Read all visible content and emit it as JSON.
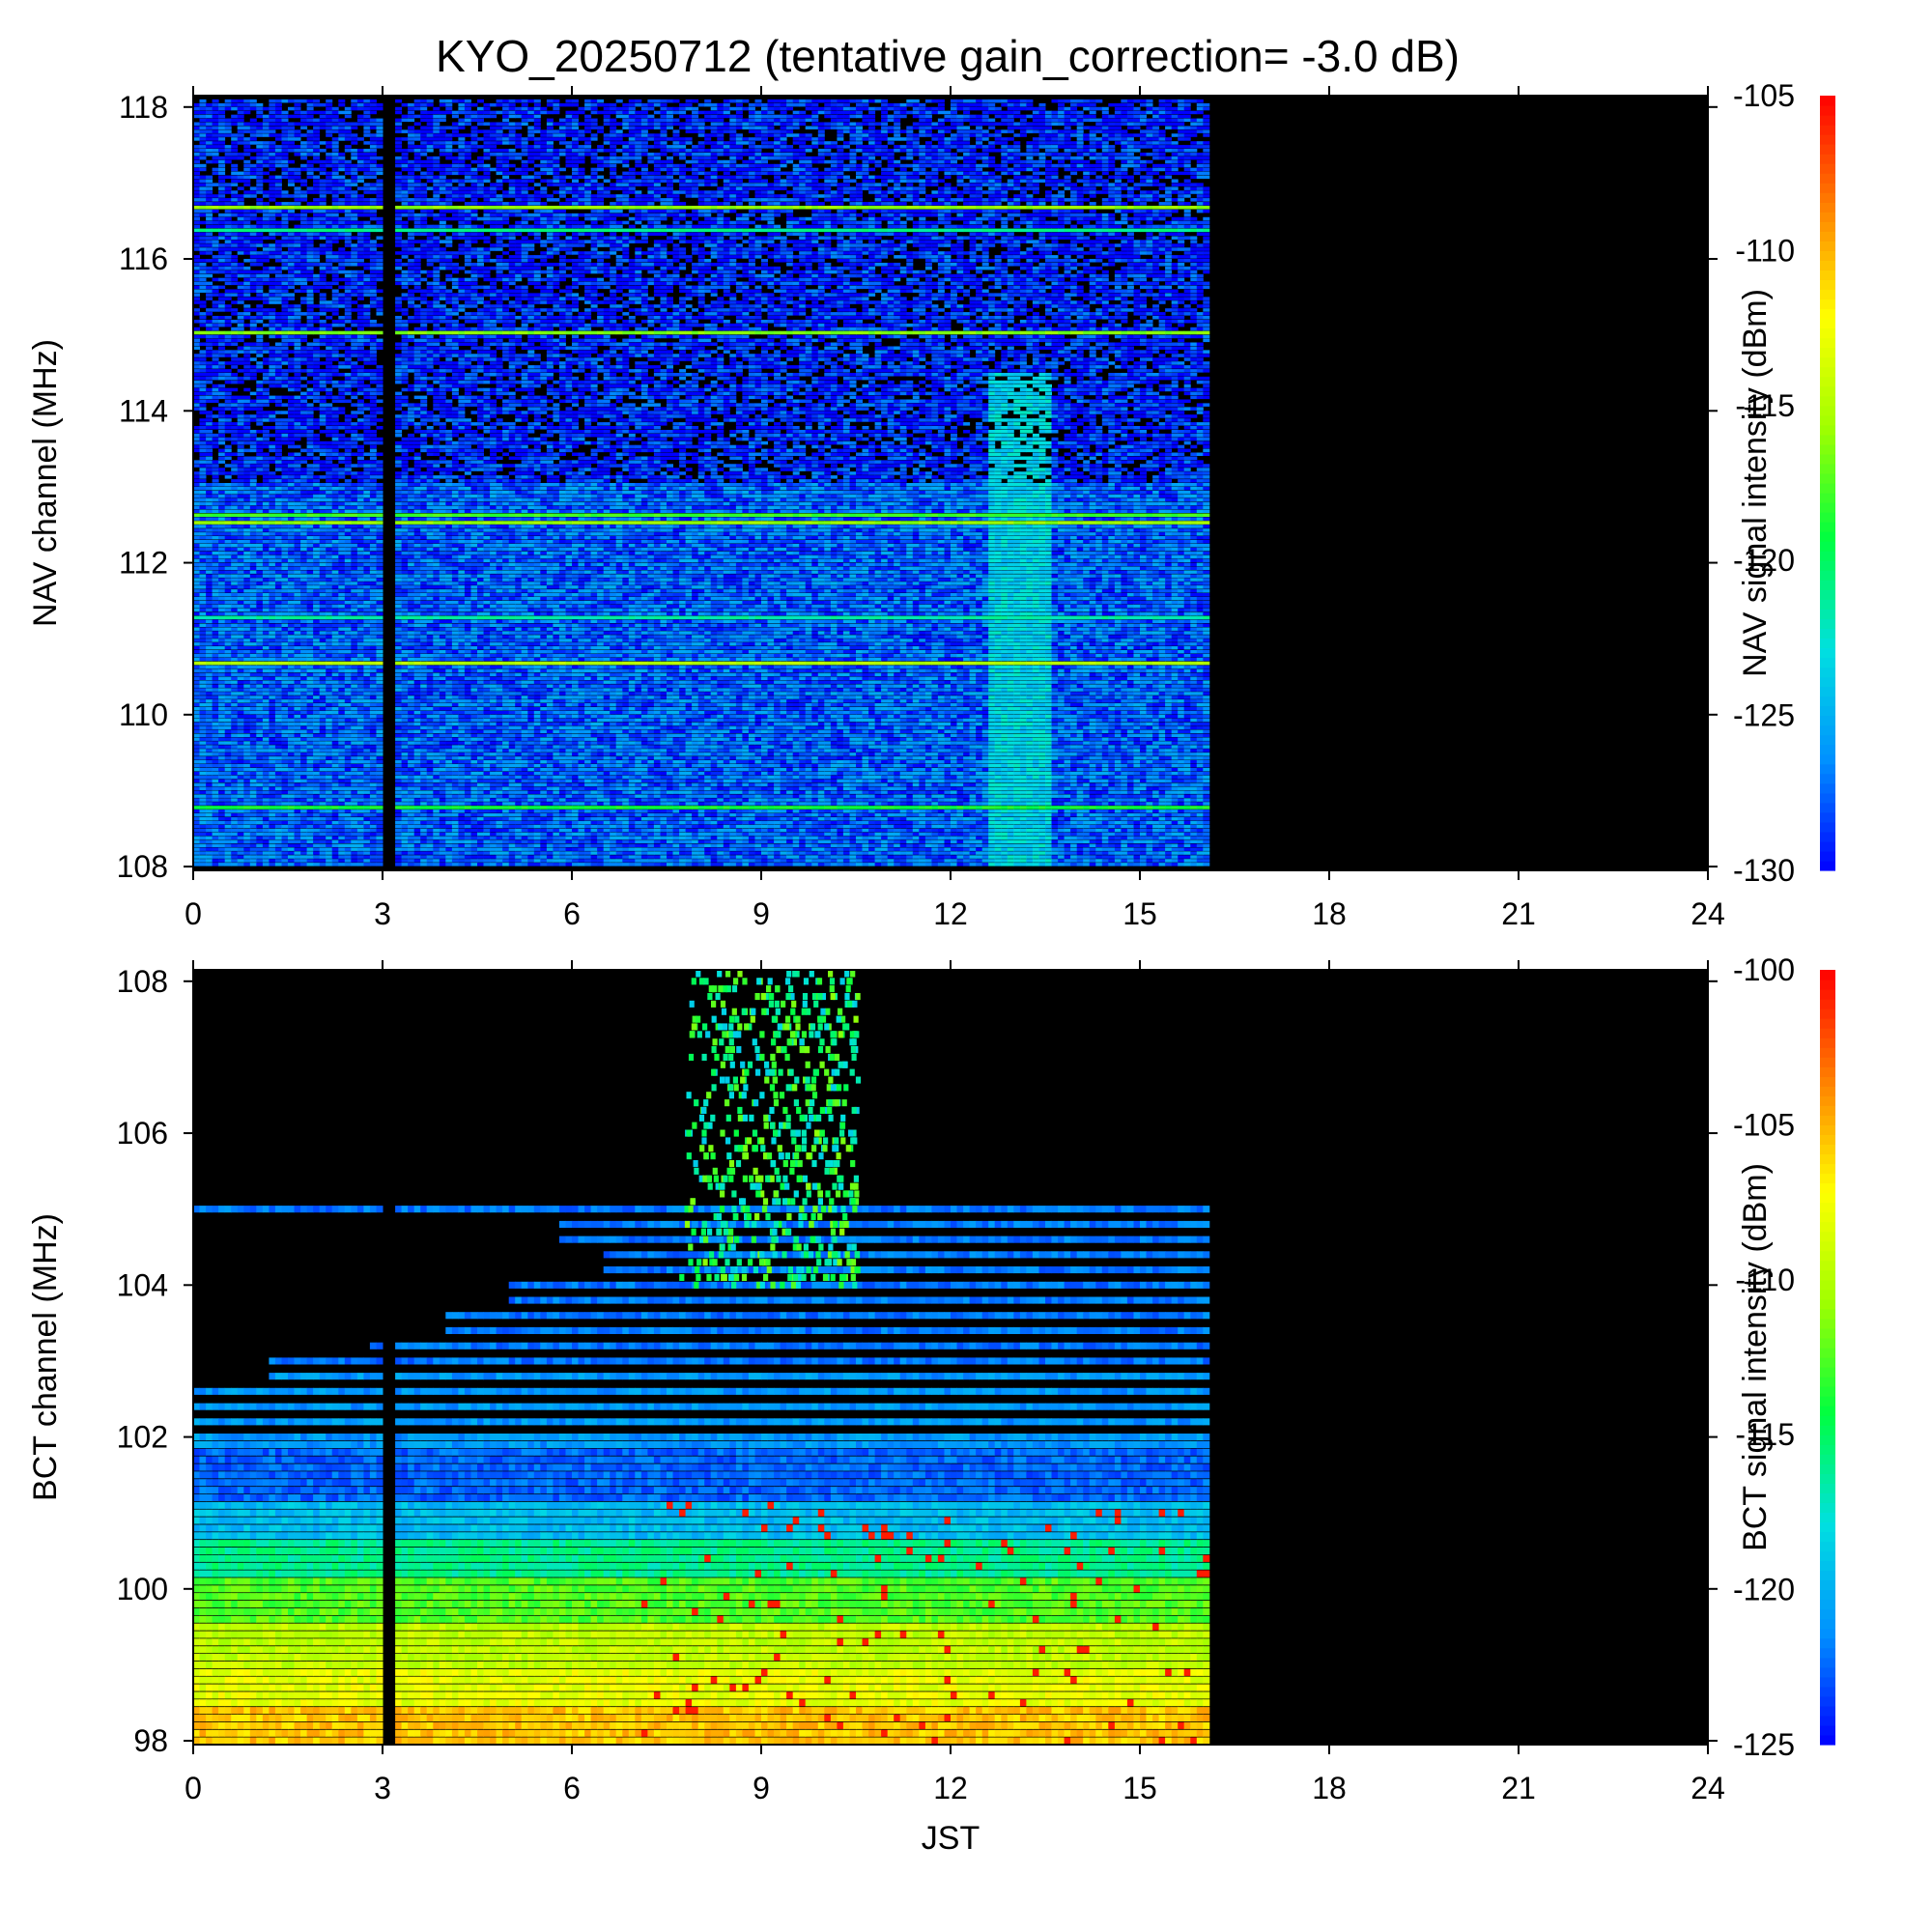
{
  "title": "KYO_20250712 (tentative gain_correction= -3.0 dB)",
  "colors": {
    "background": "#000000",
    "colormap": [
      "#0000ff",
      "#0090ff",
      "#00e0e0",
      "#00ff40",
      "#a0ff00",
      "#ffff00",
      "#ff8000",
      "#ff0000"
    ]
  },
  "chart_data": [
    {
      "type": "heatmap",
      "panel": "NAV",
      "title": "KYO_20250712 (tentative gain_correction= -3.0 dB)",
      "xlabel": "",
      "ylabel": "NAV channel (MHz)",
      "colorbar_label": "NAV signal intensity (dBm)",
      "x_ticks": [
        "0",
        "3",
        "6",
        "9",
        "12",
        "15",
        "18",
        "21",
        "24"
      ],
      "y_ticks": [
        "108",
        "110",
        "112",
        "114",
        "116",
        "118"
      ],
      "colorbar_ticks": [
        "-130",
        "-125",
        "-120",
        "-115",
        "-110",
        "-105"
      ],
      "xlim": [
        0,
        24
      ],
      "ylim": [
        107.95,
        118.15
      ],
      "clim": [
        -130,
        -105
      ],
      "data_end_hour": 16,
      "gap_hour": 3.05,
      "background_dbm": -127.5,
      "noise_dbm": 2.5,
      "strong_channels": [
        {
          "freq_mhz": 116.65,
          "dbm": -116
        },
        {
          "freq_mhz": 116.35,
          "dbm": -121
        },
        {
          "freq_mhz": 115.0,
          "dbm": -116.5
        },
        {
          "freq_mhz": 112.6,
          "dbm": -118
        },
        {
          "freq_mhz": 112.5,
          "dbm": -116
        },
        {
          "freq_mhz": 111.25,
          "dbm": -121.5
        },
        {
          "freq_mhz": 110.65,
          "dbm": -115
        },
        {
          "freq_mhz": 108.75,
          "dbm": -119
        }
      ],
      "enhanced_band_hours": [
        12.5,
        13.5
      ],
      "enhanced_band_dbm": -123.5
    },
    {
      "type": "heatmap",
      "panel": "BCT",
      "title": "",
      "xlabel": "JST",
      "ylabel": "BCT channel (MHz)",
      "colorbar_label": "BCT signal intensity (dBm)",
      "x_ticks": [
        "0",
        "3",
        "6",
        "9",
        "12",
        "15",
        "18",
        "21",
        "24"
      ],
      "y_ticks": [
        "98",
        "100",
        "102",
        "104",
        "106",
        "108"
      ],
      "colorbar_ticks": [
        "-125",
        "-120",
        "-115",
        "-110",
        "-105",
        "-100"
      ],
      "xlim": [
        0,
        24
      ],
      "ylim": [
        97.95,
        108.15
      ],
      "clim": [
        -125,
        -100
      ],
      "data_end_hour": 16,
      "gap_hour": 3.05,
      "channel_start_mhz": 98.0,
      "channel_step_mhz": 0.1,
      "channel_count": 81,
      "bands": [
        {
          "freq_min": 98.0,
          "freq_max": 98.45,
          "dbm": -105.5
        },
        {
          "freq_min": 98.45,
          "freq_max": 99.0,
          "dbm": -108
        },
        {
          "freq_min": 99.0,
          "freq_max": 99.6,
          "dbm": -109.5
        },
        {
          "freq_min": 99.6,
          "freq_max": 100.2,
          "dbm": -112.5
        },
        {
          "freq_min": 100.2,
          "freq_max": 100.7,
          "dbm": -116
        },
        {
          "freq_min": 100.7,
          "freq_max": 101.2,
          "dbm": -119.5
        },
        {
          "freq_min": 101.2,
          "freq_max": 101.9,
          "dbm": -122.5
        },
        {
          "freq_min": 101.9,
          "freq_max": 103.0,
          "dbm": -121
        },
        {
          "freq_min": 103.0,
          "freq_max": 105.1,
          "dbm": -122
        }
      ],
      "channel_start_hours": [
        {
          "freq_max": 102.6,
          "hour": 0
        },
        {
          "freq_max": 103.0,
          "hour": 1.2
        },
        {
          "freq_max": 103.3,
          "hour": 2.8
        },
        {
          "freq_max": 103.7,
          "hour": 4.0
        },
        {
          "freq_max": 104.0,
          "hour": 5.0
        },
        {
          "freq_max": 104.5,
          "hour": 6.5
        },
        {
          "freq_max": 104.8,
          "hour": 5.8
        },
        {
          "freq_max": 105.1,
          "hour": 0
        }
      ],
      "sporadic_hours": [
        6.5,
        10.5
      ],
      "sporadic_freqs": [
        104.0,
        108.1
      ],
      "sporadic_dbm": -115
    }
  ]
}
